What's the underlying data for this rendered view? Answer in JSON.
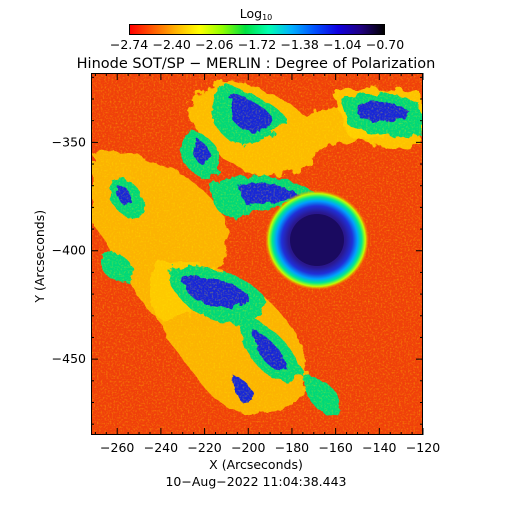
{
  "colorbar": {
    "title_main": "Log",
    "title_sub": "10",
    "ticks": [
      "−2.74",
      "−2.40",
      "−2.06",
      "−1.72",
      "−1.38",
      "−1.04",
      "−0.70"
    ],
    "colors": [
      "#ff0000",
      "#ff5a00",
      "#ffb400",
      "#ffff00",
      "#90ff00",
      "#00e040",
      "#00ffb0",
      "#00b0ff",
      "#0050ff",
      "#1000e0",
      "#200080",
      "#000000"
    ]
  },
  "title": "Hinode SOT/SP − MERLIN : Degree of Polarization",
  "axes": {
    "xlabel": "X (Arcseconds)",
    "ylabel": "Y (Arcseconds)",
    "x_ticks": [
      "−260",
      "−240",
      "−220",
      "−200",
      "−180",
      "−160",
      "−140",
      "−120"
    ],
    "y_ticks": [
      "−350",
      "−400",
      "−450"
    ],
    "x_range": [
      -272,
      -120
    ],
    "y_range": [
      -485,
      -318
    ]
  },
  "timestamp": "10−Aug−2022 11:04:38.443",
  "image_colors": {
    "background": "#f0400a",
    "plage_low": "#ffd000",
    "plage_mid": "#00d878",
    "plage_high": "#1428d8",
    "umbra": "#1a0a60"
  }
}
